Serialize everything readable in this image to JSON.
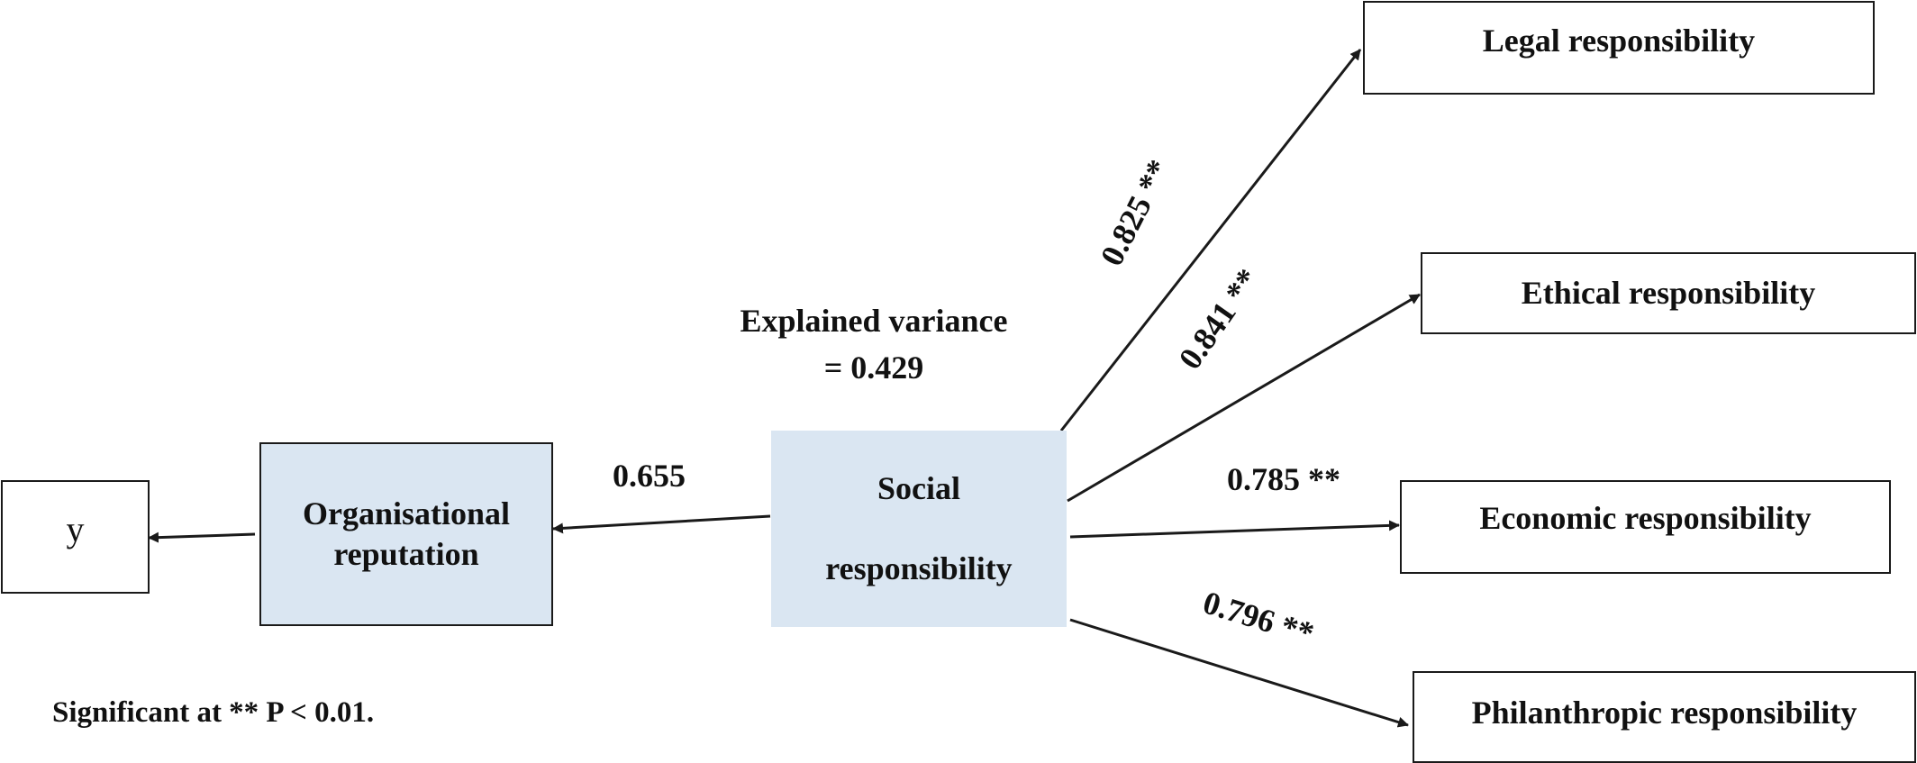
{
  "nodes": {
    "y": {
      "label": "y"
    },
    "organisational_reputation": {
      "line1": "Organisational",
      "line2": "reputation"
    },
    "social_responsibility": {
      "line1": "Social",
      "line2": "responsibility"
    },
    "legal": {
      "label": "Legal responsibility"
    },
    "ethical": {
      "label": "Ethical responsibility"
    },
    "economic": {
      "label": "Economic responsibility"
    },
    "philanthropic": {
      "label": "Philanthropic responsibility"
    }
  },
  "paths": {
    "sr_to_or": "0.655",
    "sr_to_legal": "0.825 **",
    "sr_to_ethical": "0.841 **",
    "sr_to_economic": "0.785 **",
    "sr_to_philanthropic": "0.796 **"
  },
  "explained_variance": {
    "line1": "Explained variance",
    "line2": "= 0.429"
  },
  "footnote": "Significant at ** P < 0.01.",
  "colors": {
    "node_fill": "#dae6f2",
    "line": "#1a1a1a"
  }
}
